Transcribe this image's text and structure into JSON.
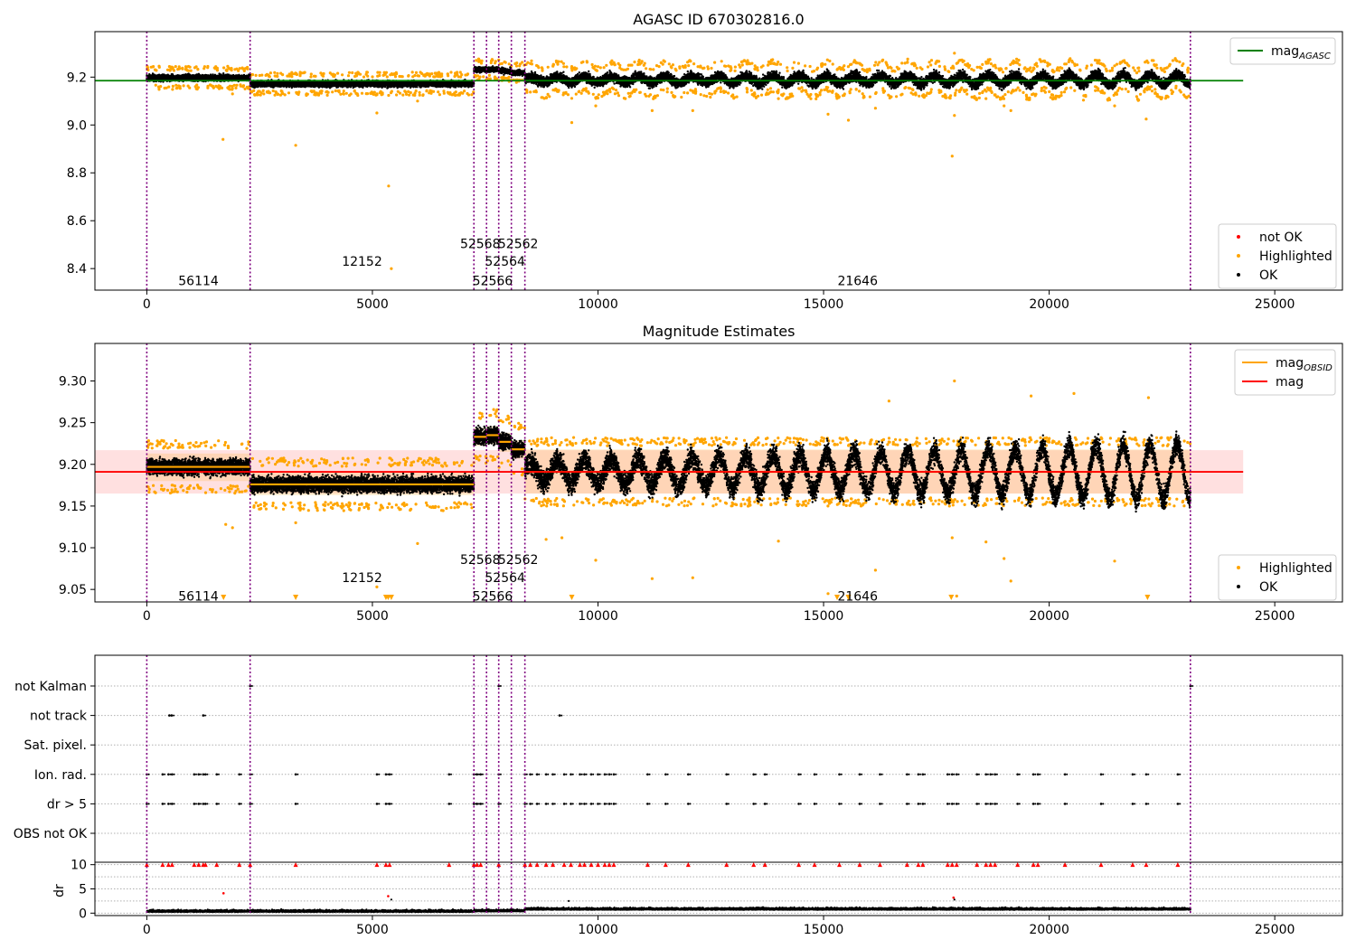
{
  "chart_data": [
    {
      "type": "scatter",
      "title": "AGASC ID 670302816.0",
      "xlim": [
        -1150,
        26500
      ],
      "ylim": [
        8.31,
        9.39
      ],
      "xticks": [
        0,
        5000,
        10000,
        15000,
        20000,
        25000
      ],
      "yticks": [
        8.4,
        8.6,
        8.8,
        9.0,
        9.2
      ],
      "ytick_labels": [
        "8.4",
        "8.6",
        "8.8",
        "9.0",
        "9.2"
      ],
      "grid": false,
      "reference_line": {
        "name": "mag_AGASC",
        "value": 9.185,
        "x": [
          -1150,
          24300
        ],
        "color": "#008000"
      },
      "segments": [
        {
          "obsid": "56114",
          "x0": 0,
          "x1": 2290,
          "level": 9.197,
          "spread": 0.012,
          "label_y": 8.35
        },
        {
          "obsid": "12152",
          "x0": 2290,
          "x1": 7250,
          "level": 9.172,
          "spread": 0.012,
          "label_y": 8.43
        },
        {
          "obsid": "52568",
          "x0": 7250,
          "x1": 7530,
          "level": 9.232,
          "spread": 0.01,
          "label_y": 8.505
        },
        {
          "obsid": "52566",
          "x0": 7530,
          "x1": 7800,
          "level": 9.232,
          "spread": 0.01,
          "label_y": 8.35
        },
        {
          "obsid": "52564",
          "x0": 7800,
          "x1": 8080,
          "level": 9.226,
          "spread": 0.01,
          "label_y": 8.43
        },
        {
          "obsid": "52562",
          "x0": 8080,
          "x1": 8380,
          "level": 9.218,
          "spread": 0.01,
          "label_y": 8.505
        },
        {
          "obsid": "21646",
          "x0": 8380,
          "x1": 23130,
          "level": 9.19,
          "spread": 0.02,
          "label_y": 8.35
        }
      ],
      "obs_boundaries": [
        0,
        2290,
        7250,
        7530,
        7800,
        8080,
        8380,
        23130
      ],
      "highlighted_outliers": [
        {
          "x": 1690,
          "y": 8.94
        },
        {
          "x": 3300,
          "y": 8.915
        },
        {
          "x": 5360,
          "y": 8.745
        },
        {
          "x": 5420,
          "y": 8.4
        },
        {
          "x": 5100,
          "y": 9.05
        },
        {
          "x": 9420,
          "y": 9.01
        },
        {
          "x": 9950,
          "y": 9.08
        },
        {
          "x": 11200,
          "y": 9.06
        },
        {
          "x": 12100,
          "y": 9.06
        },
        {
          "x": 14000,
          "y": 9.11
        },
        {
          "x": 15100,
          "y": 9.045
        },
        {
          "x": 15550,
          "y": 9.02
        },
        {
          "x": 16150,
          "y": 9.07
        },
        {
          "x": 17850,
          "y": 8.87
        },
        {
          "x": 17900,
          "y": 9.04
        },
        {
          "x": 18600,
          "y": 9.11
        },
        {
          "x": 19150,
          "y": 9.06
        },
        {
          "x": 19000,
          "y": 9.08
        },
        {
          "x": 21450,
          "y": 9.08
        },
        {
          "x": 22150,
          "y": 9.025
        },
        {
          "x": 17900,
          "y": 9.3
        },
        {
          "x": 1900,
          "y": 9.13
        },
        {
          "x": 6000,
          "y": 9.1
        }
      ],
      "legends": [
        {
          "position": "upper right",
          "entries": [
            {
              "label": "mag",
              "subscript": "AGASC",
              "color": "#008000",
              "marker": "line"
            }
          ]
        },
        {
          "position": "lower right",
          "entries": [
            {
              "label": "not OK",
              "color": "#ff0000",
              "marker": "dot"
            },
            {
              "label": "Highlighted",
              "color": "#ffa500",
              "marker": "dot"
            },
            {
              "label": "OK",
              "color": "#000000",
              "marker": "dot"
            }
          ]
        }
      ]
    },
    {
      "type": "scatter",
      "title": "Magnitude Estimates",
      "xlim": [
        -1150,
        26500
      ],
      "ylim": [
        9.035,
        9.345
      ],
      "xticks": [
        0,
        5000,
        10000,
        15000,
        20000,
        25000
      ],
      "yticks": [
        9.05,
        9.1,
        9.15,
        9.2,
        9.25,
        9.3
      ],
      "ytick_labels": [
        "9.05",
        "9.10",
        "9.15",
        "9.20",
        "9.25",
        "9.30"
      ],
      "grid": false,
      "mag": {
        "value": 9.191,
        "band": [
          9.165,
          9.217
        ],
        "x": [
          -1150,
          24300
        ],
        "color": "#ff0000"
      },
      "obsid_mag": [
        {
          "obsid": "56114",
          "x0": 0,
          "x1": 2290,
          "value": 9.197,
          "band": [
            9.18,
            9.213
          ],
          "label_y": 9.042
        },
        {
          "obsid": "12152",
          "x0": 2290,
          "x1": 7250,
          "value": 9.176,
          "band": [
            9.163,
            9.19
          ],
          "label_y": 9.064
        },
        {
          "obsid": "52568",
          "x0": 7250,
          "x1": 7530,
          "value": 9.233,
          "band": [
            9.222,
            9.244
          ],
          "label_y": 9.086
        },
        {
          "obsid": "52566",
          "x0": 7530,
          "x1": 7800,
          "value": 9.235,
          "band": [
            9.224,
            9.246
          ],
          "label_y": 9.042
        },
        {
          "obsid": "52564",
          "x0": 7800,
          "x1": 8080,
          "value": 9.227,
          "band": [
            9.215,
            9.238
          ],
          "label_y": 9.064
        },
        {
          "obsid": "52562",
          "x0": 8080,
          "x1": 8380,
          "value": 9.218,
          "band": [
            9.207,
            9.229
          ],
          "label_y": 9.086
        },
        {
          "obsid": "21646",
          "x0": 8380,
          "x1": 23130,
          "value": 9.191,
          "band": [
            9.165,
            9.218
          ],
          "label_y": 9.042
        }
      ],
      "clipped_low_markers": [
        1700,
        3300,
        5300,
        5350,
        5420,
        9420,
        15300,
        15550,
        17830,
        22180
      ],
      "highlighted_outliers": [
        {
          "x": 1750,
          "y": 9.128
        },
        {
          "x": 1900,
          "y": 9.124
        },
        {
          "x": 3300,
          "y": 9.13
        },
        {
          "x": 5100,
          "y": 9.053
        },
        {
          "x": 6000,
          "y": 9.105
        },
        {
          "x": 9950,
          "y": 9.085
        },
        {
          "x": 11200,
          "y": 9.063
        },
        {
          "x": 12100,
          "y": 9.064
        },
        {
          "x": 14000,
          "y": 9.108
        },
        {
          "x": 15100,
          "y": 9.045
        },
        {
          "x": 16150,
          "y": 9.073
        },
        {
          "x": 17850,
          "y": 9.112
        },
        {
          "x": 17900,
          "y": 9.3
        },
        {
          "x": 17950,
          "y": 9.042
        },
        {
          "x": 18600,
          "y": 9.107
        },
        {
          "x": 19000,
          "y": 9.087
        },
        {
          "x": 19150,
          "y": 9.06
        },
        {
          "x": 21450,
          "y": 9.084
        },
        {
          "x": 16450,
          "y": 9.276
        },
        {
          "x": 19600,
          "y": 9.282
        },
        {
          "x": 20550,
          "y": 9.285
        },
        {
          "x": 22200,
          "y": 9.28
        },
        {
          "x": 8850,
          "y": 9.11
        },
        {
          "x": 9200,
          "y": 9.112
        }
      ],
      "legends": [
        {
          "position": "upper right",
          "entries": [
            {
              "label": "mag",
              "subscript": "OBSID",
              "color": "#ffa500",
              "marker": "line"
            },
            {
              "label": "mag",
              "color": "#ff0000",
              "marker": "line"
            }
          ]
        },
        {
          "position": "lower right",
          "entries": [
            {
              "label": "Highlighted",
              "color": "#ffa500",
              "marker": "dot"
            },
            {
              "label": "OK",
              "color": "#000000",
              "marker": "dot"
            }
          ]
        }
      ]
    },
    {
      "type": "scatter",
      "title": "",
      "xlim": [
        -1150,
        26500
      ],
      "categories": [
        "not Kalman",
        "not track",
        "Sat. pixel.",
        "Ion. rad.",
        "dr > 5",
        "OBS not OK"
      ],
      "grid": true,
      "flags": {
        "not Kalman": [
          2290,
          7800,
          23130
        ],
        "not track": [
          500,
          550,
          1250,
          9150
        ],
        "Sat. pixel.": [],
        "Ion. rad.": [
          0,
          350,
          480,
          560,
          1050,
          1150,
          1250,
          1300,
          1550,
          2050,
          2290,
          3300,
          5100,
          5300,
          5380,
          6700,
          7250,
          7320,
          7400,
          7800,
          8380,
          8500,
          8650,
          8850,
          9000,
          9250,
          9400,
          9600,
          9700,
          9850,
          10000,
          10150,
          10250,
          10350,
          11100,
          11500,
          12000,
          12850,
          13450,
          13700,
          14450,
          14800,
          15350,
          15800,
          16250,
          16850,
          17100,
          17200,
          17750,
          17850,
          17950,
          18400,
          18600,
          18700,
          18800,
          19300,
          19650,
          19750,
          20350,
          21150,
          21850,
          22150,
          22850
        ],
        "dr > 5": [
          0,
          350,
          480,
          560,
          1050,
          1150,
          1250,
          1300,
          1550,
          2050,
          2290,
          3300,
          5100,
          5300,
          5380,
          6700,
          7250,
          7320,
          7400,
          7800,
          8380,
          8500,
          8650,
          8850,
          9000,
          9250,
          9400,
          9600,
          9700,
          9850,
          10000,
          10150,
          10250,
          10350,
          11100,
          11500,
          12000,
          12850,
          13450,
          13700,
          14450,
          14800,
          15350,
          15800,
          16250,
          16850,
          17100,
          17200,
          17750,
          17850,
          17950,
          18400,
          18600,
          18700,
          18800,
          19300,
          19650,
          19750,
          20350,
          21150,
          21850,
          22150,
          22850
        ],
        "OBS not OK": []
      }
    },
    {
      "type": "scatter",
      "title": "",
      "xlim": [
        -1150,
        26500
      ],
      "ylim": [
        -0.5,
        10.5
      ],
      "ylabel": "dr",
      "yticks": [
        0,
        5,
        10
      ],
      "ytick_labels": [
        "0",
        "5",
        "10"
      ],
      "xticks": [
        0,
        5000,
        10000,
        15000,
        20000,
        25000
      ],
      "grid": true,
      "clipped_high_markers": [
        0,
        350,
        480,
        560,
        1050,
        1150,
        1250,
        1300,
        1550,
        2050,
        2290,
        3300,
        5100,
        5300,
        5380,
        6700,
        7250,
        7320,
        7400,
        7800,
        8380,
        8500,
        8650,
        8850,
        9000,
        9250,
        9400,
        9600,
        9700,
        9850,
        10000,
        10150,
        10250,
        10350,
        11100,
        11500,
        12000,
        12850,
        13450,
        13700,
        14450,
        14800,
        15350,
        15800,
        16250,
        16850,
        17100,
        17200,
        17750,
        17850,
        17950,
        18400,
        18600,
        18700,
        18800,
        19300,
        19650,
        19750,
        20350,
        21150,
        21850,
        22150,
        22850
      ],
      "red_points": [
        {
          "x": 1700,
          "y": 4.1
        },
        {
          "x": 5350,
          "y": 3.5
        },
        {
          "x": 17880,
          "y": 3.2
        }
      ],
      "black_outliers": [
        {
          "x": 5420,
          "y": 2.8
        },
        {
          "x": 9350,
          "y": 2.5
        },
        {
          "x": 17900,
          "y": 2.8
        }
      ],
      "baseline": [
        {
          "x0": 0,
          "x1": 7250,
          "level": 0.25
        },
        {
          "x0": 7250,
          "x1": 8380,
          "level": 0.35
        },
        {
          "x0": 8380,
          "x1": 23130,
          "level": 0.7
        }
      ]
    }
  ]
}
